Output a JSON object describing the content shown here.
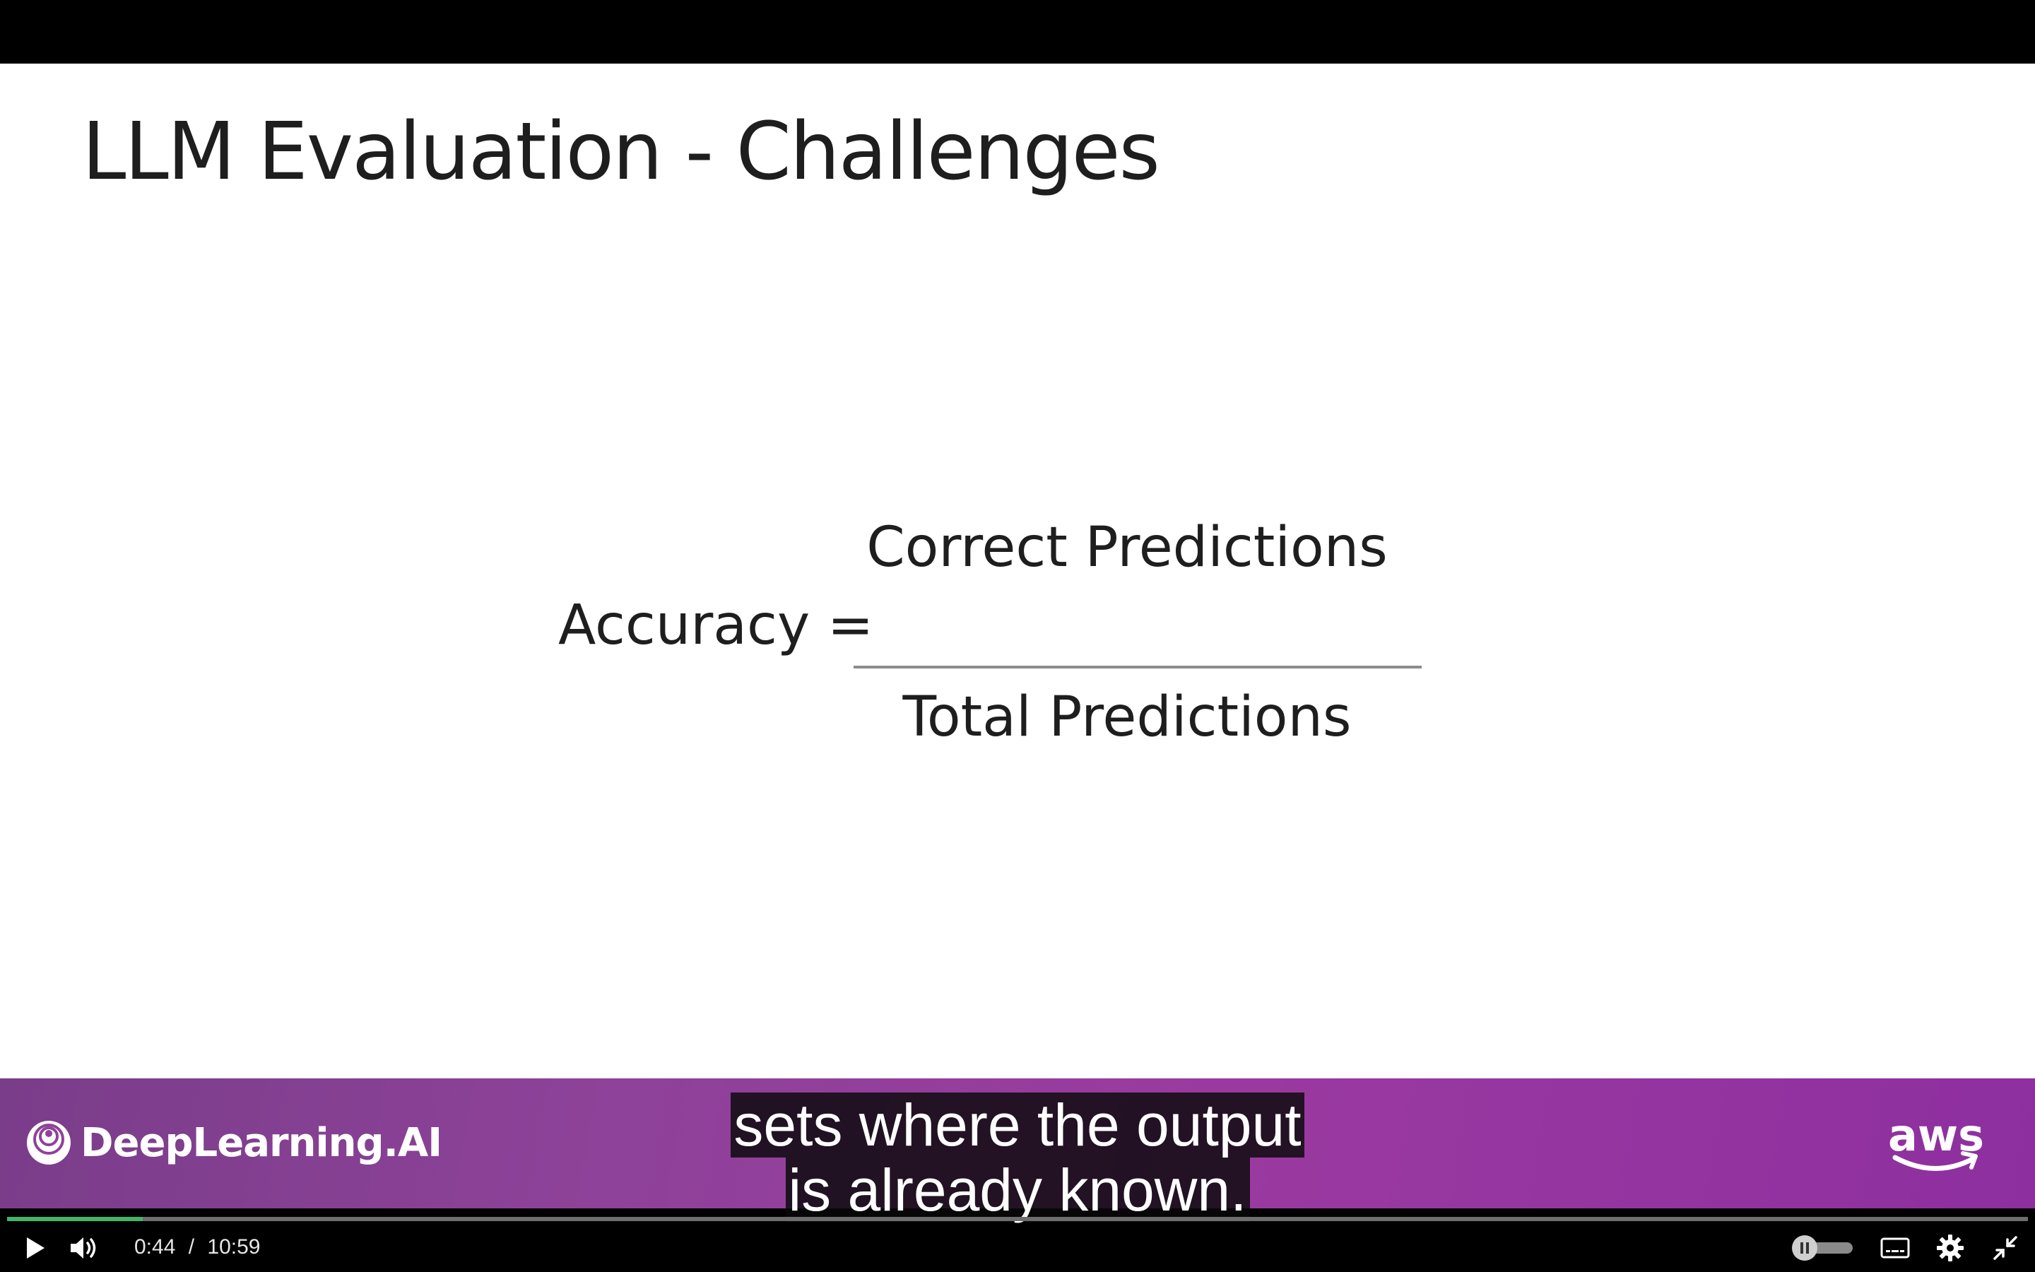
{
  "slide": {
    "title": "LLM Evaluation - Challenges",
    "formula": {
      "lhs": "Accuracy =",
      "numerator": "Correct Predictions",
      "denominator": "Total Predictions"
    }
  },
  "branding": {
    "left_logo_text": "DeepLearning.AI",
    "left_logo_icon": "deeplearning-ai-logo-icon",
    "right_logo_text": "aws",
    "right_logo_icon": "aws-smile-icon",
    "band_color": "#8e4299"
  },
  "captions": {
    "lines": [
      "sets where the output",
      "is already known."
    ]
  },
  "player": {
    "current_time": "0:44",
    "separator": "/",
    "duration": "10:59",
    "progress": 0.067,
    "progress_color": "#3fb66a",
    "icons": {
      "play": "play-icon",
      "volume": "volume-icon",
      "speed": "pause-toggle-icon",
      "captions": "closed-captions-icon",
      "settings": "gear-icon",
      "exit_fullscreen": "exit-fullscreen-icon"
    }
  }
}
